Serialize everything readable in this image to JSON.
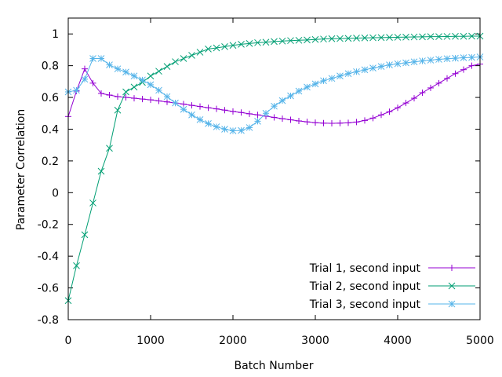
{
  "chart_data": {
    "type": "line",
    "xlabel": "Batch Number",
    "ylabel": "Parameter Correlation",
    "xlim": [
      0,
      5000
    ],
    "ylim": [
      -0.8,
      1.1
    ],
    "xticks": [
      0,
      1000,
      2000,
      3000,
      4000,
      5000
    ],
    "xtick_labels": [
      "0",
      "1000",
      "2000",
      "3000",
      "4000",
      "5000"
    ],
    "yticks": [
      -0.8,
      -0.6,
      -0.4,
      -0.2,
      0,
      0.2,
      0.4,
      0.6,
      0.8,
      1
    ],
    "ytick_labels": [
      "-0.8",
      "-0.6",
      "-0.4",
      "-0.2",
      "0",
      "0.2",
      "0.4",
      "0.6",
      "0.8",
      "1"
    ],
    "grid": false,
    "legend_position": "bottom-right",
    "series": [
      {
        "name": "Trial 1, second input",
        "color": "#9400d3",
        "marker": "plus",
        "points": [
          [
            0,
            0.48
          ],
          [
            100,
            0.64
          ],
          [
            200,
            0.78
          ],
          [
            300,
            0.69
          ],
          [
            400,
            0.625
          ],
          [
            500,
            0.615
          ],
          [
            600,
            0.605
          ],
          [
            700,
            0.6
          ],
          [
            800,
            0.595
          ],
          [
            900,
            0.59
          ],
          [
            1000,
            0.585
          ],
          [
            1100,
            0.578
          ],
          [
            1200,
            0.572
          ],
          [
            1300,
            0.565
          ],
          [
            1400,
            0.558
          ],
          [
            1500,
            0.55
          ],
          [
            1600,
            0.543
          ],
          [
            1700,
            0.535
          ],
          [
            1800,
            0.528
          ],
          [
            1900,
            0.52
          ],
          [
            2000,
            0.512
          ],
          [
            2100,
            0.505
          ],
          [
            2200,
            0.497
          ],
          [
            2300,
            0.49
          ],
          [
            2400,
            0.482
          ],
          [
            2500,
            0.474
          ],
          [
            2600,
            0.466
          ],
          [
            2700,
            0.459
          ],
          [
            2800,
            0.452
          ],
          [
            2900,
            0.446
          ],
          [
            3000,
            0.441
          ],
          [
            3100,
            0.438
          ],
          [
            3200,
            0.437
          ],
          [
            3300,
            0.438
          ],
          [
            3400,
            0.44
          ],
          [
            3500,
            0.445
          ],
          [
            3600,
            0.455
          ],
          [
            3700,
            0.47
          ],
          [
            3800,
            0.49
          ],
          [
            3900,
            0.51
          ],
          [
            4000,
            0.535
          ],
          [
            4100,
            0.565
          ],
          [
            4200,
            0.595
          ],
          [
            4300,
            0.63
          ],
          [
            4400,
            0.66
          ],
          [
            4500,
            0.69
          ],
          [
            4600,
            0.72
          ],
          [
            4700,
            0.75
          ],
          [
            4800,
            0.775
          ],
          [
            4900,
            0.8
          ],
          [
            5000,
            0.81
          ]
        ]
      },
      {
        "name": "Trial 2, second input",
        "color": "#009e73",
        "marker": "cross",
        "points": [
          [
            0,
            -0.68
          ],
          [
            100,
            -0.46
          ],
          [
            200,
            -0.265
          ],
          [
            300,
            -0.065
          ],
          [
            400,
            0.135
          ],
          [
            500,
            0.28
          ],
          [
            600,
            0.52
          ],
          [
            700,
            0.635
          ],
          [
            800,
            0.665
          ],
          [
            900,
            0.695
          ],
          [
            1000,
            0.735
          ],
          [
            1100,
            0.765
          ],
          [
            1200,
            0.795
          ],
          [
            1300,
            0.825
          ],
          [
            1400,
            0.845
          ],
          [
            1500,
            0.865
          ],
          [
            1600,
            0.885
          ],
          [
            1700,
            0.905
          ],
          [
            1800,
            0.912
          ],
          [
            1900,
            0.92
          ],
          [
            2000,
            0.928
          ],
          [
            2100,
            0.935
          ],
          [
            2200,
            0.94
          ],
          [
            2300,
            0.945
          ],
          [
            2400,
            0.948
          ],
          [
            2500,
            0.952
          ],
          [
            2600,
            0.955
          ],
          [
            2700,
            0.958
          ],
          [
            2800,
            0.96
          ],
          [
            2900,
            0.962
          ],
          [
            3000,
            0.965
          ],
          [
            3100,
            0.968
          ],
          [
            3200,
            0.97
          ],
          [
            3300,
            0.971
          ],
          [
            3400,
            0.972
          ],
          [
            3500,
            0.974
          ],
          [
            3600,
            0.975
          ],
          [
            3700,
            0.976
          ],
          [
            3800,
            0.977
          ],
          [
            3900,
            0.978
          ],
          [
            4000,
            0.979
          ],
          [
            4100,
            0.98
          ],
          [
            4200,
            0.981
          ],
          [
            4300,
            0.982
          ],
          [
            4400,
            0.983
          ],
          [
            4500,
            0.983
          ],
          [
            4600,
            0.984
          ],
          [
            4700,
            0.985
          ],
          [
            4800,
            0.985
          ],
          [
            4900,
            0.986
          ],
          [
            5000,
            0.986
          ]
        ]
      },
      {
        "name": "Trial 3, second input",
        "color": "#56b4e9",
        "marker": "star",
        "points": [
          [
            0,
            0.635
          ],
          [
            100,
            0.645
          ],
          [
            200,
            0.715
          ],
          [
            300,
            0.845
          ],
          [
            400,
            0.845
          ],
          [
            500,
            0.805
          ],
          [
            600,
            0.78
          ],
          [
            700,
            0.76
          ],
          [
            800,
            0.735
          ],
          [
            900,
            0.71
          ],
          [
            1000,
            0.68
          ],
          [
            1100,
            0.645
          ],
          [
            1200,
            0.605
          ],
          [
            1300,
            0.565
          ],
          [
            1400,
            0.525
          ],
          [
            1500,
            0.49
          ],
          [
            1600,
            0.46
          ],
          [
            1700,
            0.435
          ],
          [
            1800,
            0.415
          ],
          [
            1900,
            0.4
          ],
          [
            2000,
            0.39
          ],
          [
            2100,
            0.392
          ],
          [
            2200,
            0.41
          ],
          [
            2300,
            0.45
          ],
          [
            2400,
            0.5
          ],
          [
            2500,
            0.545
          ],
          [
            2600,
            0.58
          ],
          [
            2700,
            0.61
          ],
          [
            2800,
            0.64
          ],
          [
            2900,
            0.665
          ],
          [
            3000,
            0.685
          ],
          [
            3100,
            0.705
          ],
          [
            3200,
            0.72
          ],
          [
            3300,
            0.735
          ],
          [
            3400,
            0.75
          ],
          [
            3500,
            0.762
          ],
          [
            3600,
            0.774
          ],
          [
            3700,
            0.785
          ],
          [
            3800,
            0.795
          ],
          [
            3900,
            0.805
          ],
          [
            4000,
            0.812
          ],
          [
            4100,
            0.818
          ],
          [
            4200,
            0.824
          ],
          [
            4300,
            0.83
          ],
          [
            4400,
            0.835
          ],
          [
            4500,
            0.84
          ],
          [
            4600,
            0.844
          ],
          [
            4700,
            0.847
          ],
          [
            4800,
            0.85
          ],
          [
            4900,
            0.852
          ],
          [
            5000,
            0.855
          ]
        ]
      }
    ]
  }
}
